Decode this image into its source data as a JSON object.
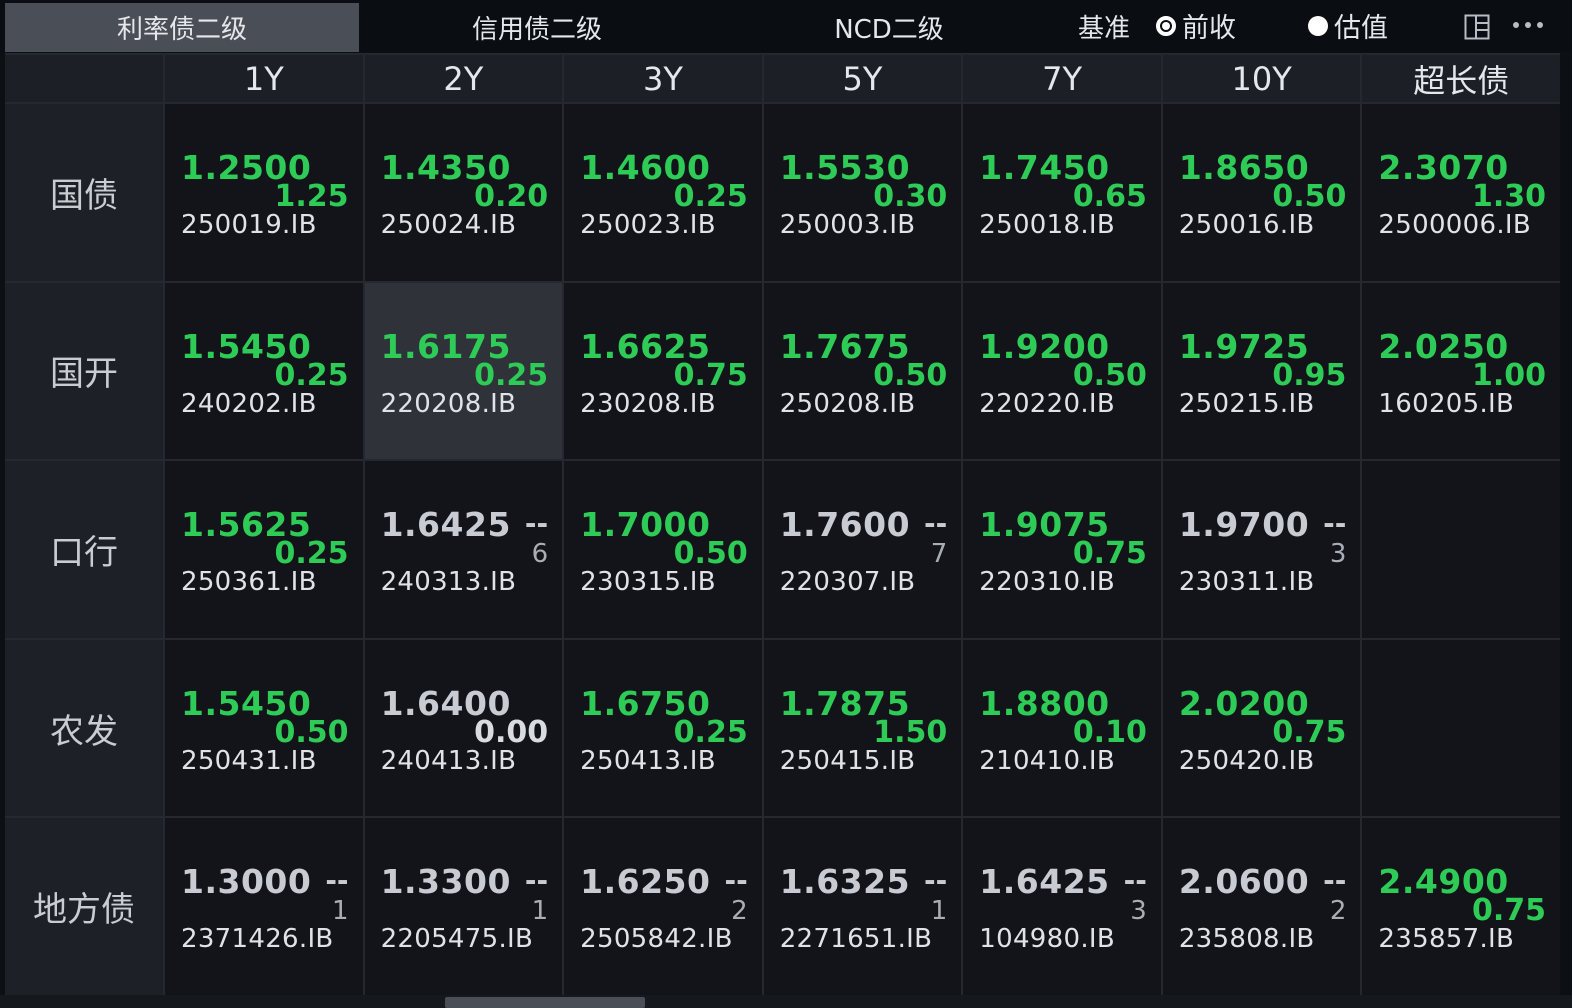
{
  "tabs": [
    {
      "label": "利率债二级",
      "active": true
    },
    {
      "label": "信用债二级",
      "active": false
    },
    {
      "label": "NCD二级",
      "active": false
    }
  ],
  "base": {
    "label": "基准",
    "options": [
      {
        "label": "前收",
        "checked": true
      },
      {
        "label": "估值",
        "checked": false
      }
    ]
  },
  "toolbar_icons": [
    "layout-panel-icon",
    "more-options-icon"
  ],
  "terms": [
    "1Y",
    "2Y",
    "3Y",
    "5Y",
    "7Y",
    "10Y",
    "超长债"
  ],
  "rows": [
    {
      "label": "国债",
      "cells": [
        {
          "yield": "1.2500",
          "change": "1.25",
          "code": "250019.IB",
          "color": "green"
        },
        {
          "yield": "1.4350",
          "change": "0.20",
          "code": "250024.IB",
          "color": "green"
        },
        {
          "yield": "1.4600",
          "change": "0.25",
          "code": "250023.IB",
          "color": "green"
        },
        {
          "yield": "1.5530",
          "change": "0.30",
          "code": "250003.IB",
          "color": "green"
        },
        {
          "yield": "1.7450",
          "change": "0.65",
          "code": "250018.IB",
          "color": "green"
        },
        {
          "yield": "1.8650",
          "change": "0.50",
          "code": "250016.IB",
          "color": "green"
        },
        {
          "yield": "2.3070",
          "change": "1.30",
          "code": "2500006.IB",
          "color": "green"
        }
      ]
    },
    {
      "label": "国开",
      "cells": [
        {
          "yield": "1.5450",
          "change": "0.25",
          "code": "240202.IB",
          "color": "green"
        },
        {
          "yield": "1.6175",
          "change": "0.25",
          "code": "220208.IB",
          "color": "green",
          "selected": true
        },
        {
          "yield": "1.6625",
          "change": "0.75",
          "code": "230208.IB",
          "color": "green"
        },
        {
          "yield": "1.7675",
          "change": "0.50",
          "code": "250208.IB",
          "color": "green"
        },
        {
          "yield": "1.9200",
          "change": "0.50",
          "code": "220220.IB",
          "color": "green"
        },
        {
          "yield": "1.9725",
          "change": "0.95",
          "code": "250215.IB",
          "color": "green"
        },
        {
          "yield": "2.0250",
          "change": "1.00",
          "code": "160205.IB",
          "color": "green"
        }
      ]
    },
    {
      "label": "口行",
      "cells": [
        {
          "yield": "1.5625",
          "change": "0.25",
          "code": "250361.IB",
          "color": "green"
        },
        {
          "yield": "1.6425",
          "dash": "--",
          "count": "6",
          "code": "240313.IB",
          "color": "grey"
        },
        {
          "yield": "1.7000",
          "change": "0.50",
          "code": "230315.IB",
          "color": "green"
        },
        {
          "yield": "1.7600",
          "dash": "--",
          "count": "7",
          "code": "220307.IB",
          "color": "grey"
        },
        {
          "yield": "1.9075",
          "change": "0.75",
          "code": "220310.IB",
          "color": "green"
        },
        {
          "yield": "1.9700",
          "dash": "--",
          "count": "3",
          "code": "230311.IB",
          "color": "grey"
        },
        {
          "empty": true
        }
      ]
    },
    {
      "label": "农发",
      "cells": [
        {
          "yield": "1.5450",
          "change": "0.50",
          "code": "250431.IB",
          "color": "green"
        },
        {
          "yield": "1.6400",
          "change": "0.00",
          "code": "240413.IB",
          "color": "grey"
        },
        {
          "yield": "1.6750",
          "change": "0.25",
          "code": "250413.IB",
          "color": "green"
        },
        {
          "yield": "1.7875",
          "change": "1.50",
          "code": "250415.IB",
          "color": "green"
        },
        {
          "yield": "1.8800",
          "change": "0.10",
          "code": "210410.IB",
          "color": "green"
        },
        {
          "yield": "2.0200",
          "change": "0.75",
          "code": "250420.IB",
          "color": "green"
        },
        {
          "empty": true
        }
      ]
    },
    {
      "label": "地方债",
      "cells": [
        {
          "yield": "1.3000",
          "dash": "--",
          "count": "1",
          "code": "2371426.IB",
          "color": "grey"
        },
        {
          "yield": "1.3300",
          "dash": "--",
          "count": "1",
          "code": "2205475.IB",
          "color": "grey"
        },
        {
          "yield": "1.6250",
          "dash": "--",
          "count": "2",
          "code": "2505842.IB",
          "color": "grey"
        },
        {
          "yield": "1.6325",
          "dash": "--",
          "count": "1",
          "code": "2271651.IB",
          "color": "grey"
        },
        {
          "yield": "1.6425",
          "dash": "--",
          "count": "3",
          "code": "104980.IB",
          "color": "grey"
        },
        {
          "yield": "2.0600",
          "dash": "--",
          "count": "2",
          "code": "235808.IB",
          "color": "grey"
        },
        {
          "yield": "2.4900",
          "change": "0.75",
          "code": "235857.IB",
          "color": "green"
        }
      ]
    }
  ],
  "colors": {
    "up": "#2ecc57",
    "neutral": "#c8ccd2",
    "background": "#0c0f14",
    "active_tab": "#4a4e56"
  }
}
